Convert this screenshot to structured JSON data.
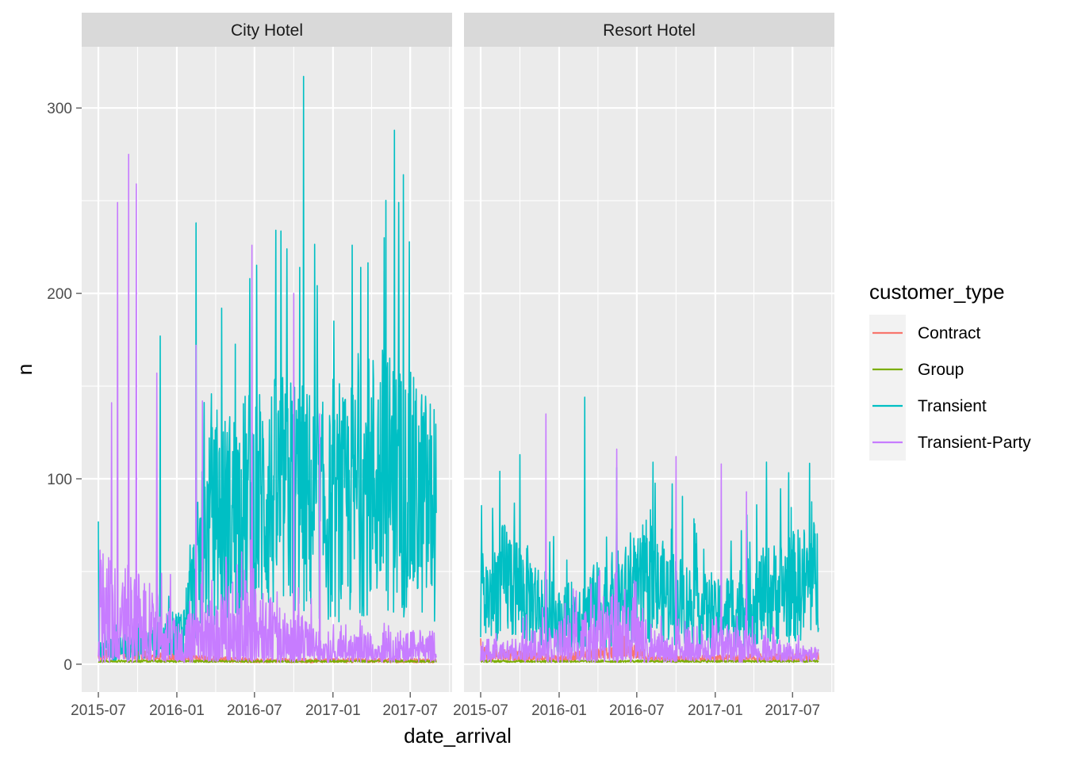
{
  "chart_data": {
    "type": "line",
    "facet_by": "hotel",
    "facets": [
      {
        "label": "City Hotel",
        "x_range": [
          "2015-07-01",
          "2017-08-31"
        ]
      },
      {
        "label": "Resort Hotel",
        "x_range": [
          "2015-07-01",
          "2017-08-31"
        ]
      }
    ],
    "xlabel": "date_arrival",
    "ylabel": "n",
    "x_ticks": [
      "2015-07",
      "2016-01",
      "2016-07",
      "2017-01",
      "2017-07"
    ],
    "y_ticks": [
      0,
      100,
      200,
      300
    ],
    "ylim": [
      -15,
      333
    ],
    "legend": {
      "title": "customer_type",
      "placement": "right",
      "entries": [
        "Contract",
        "Group",
        "Transient",
        "Transient-Party"
      ]
    },
    "colors": {
      "Contract": "#F8766D",
      "Group": "#7CAE00",
      "Transient": "#00BFC4",
      "Transient-Party": "#C77CFF",
      "panel_bg": "#EBEBEB",
      "strip_bg": "#D9D9D9",
      "grid": "#FFFFFF"
    },
    "series_profiles": {
      "City Hotel": {
        "Transient": {
          "baseline": [
            [
              "2015-07-01",
              8
            ],
            [
              "2015-10-01",
              10
            ],
            [
              "2016-01-15",
              20
            ],
            [
              "2016-03-15",
              80
            ],
            [
              "2016-07-01",
              95
            ],
            [
              "2016-10-01",
              100
            ],
            [
              "2017-01-01",
              85
            ],
            [
              "2017-04-15",
              110
            ],
            [
              "2017-08-31",
              90
            ]
          ],
          "peaks": [
            [
              "2015-07-01",
              77
            ],
            [
              "2015-11-23",
              177
            ],
            [
              "2016-02-15",
              238
            ],
            [
              "2016-04-15",
              192
            ],
            [
              "2016-06-20",
              208
            ],
            [
              "2016-09-15",
              224
            ],
            [
              "2016-10-15",
              214
            ],
            [
              "2016-10-24",
              317
            ],
            [
              "2017-02-15",
              226
            ],
            [
              "2017-05-01",
              230
            ],
            [
              "2017-05-25",
              288
            ],
            [
              "2017-06-15",
              264
            ]
          ]
        },
        "Transient-Party": {
          "baseline": [
            [
              "2015-07-01",
              40
            ],
            [
              "2015-10-15",
              30
            ],
            [
              "2016-01-15",
              15
            ],
            [
              "2016-06-01",
              30
            ],
            [
              "2016-09-01",
              20
            ],
            [
              "2017-01-01",
              10
            ],
            [
              "2017-08-31",
              12
            ]
          ],
          "peaks": [
            [
              "2015-08-01",
              141
            ],
            [
              "2015-08-15",
              249
            ],
            [
              "2015-09-10",
              275
            ],
            [
              "2015-09-28",
              259
            ],
            [
              "2015-11-15",
              157
            ],
            [
              "2016-02-15",
              172
            ],
            [
              "2016-03-01",
              142
            ],
            [
              "2016-06-25",
              226
            ],
            [
              "2016-10-01",
              200
            ],
            [
              "2016-12-01",
              135
            ]
          ]
        },
        "Contract": {
          "baseline": [
            [
              "2015-07-01",
              4
            ],
            [
              "2015-09-01",
              8
            ],
            [
              "2015-11-01",
              4
            ],
            [
              "2016-07-01",
              2
            ],
            [
              "2017-08-31",
              2
            ]
          ],
          "peaks": [
            [
              "2015-09-01",
              15
            ],
            [
              "2015-10-15",
              12
            ]
          ]
        },
        "Group": {
          "baseline": [
            [
              "2015-07-01",
              1
            ],
            [
              "2017-08-31",
              1
            ]
          ],
          "peaks": [
            [
              "2015-10-01",
              7
            ],
            [
              "2016-04-01",
              4
            ]
          ]
        }
      },
      "Resort Hotel": {
        "Transient": {
          "baseline": [
            [
              "2015-07-01",
              35
            ],
            [
              "2015-09-01",
              50
            ],
            [
              "2016-01-01",
              25
            ],
            [
              "2016-04-01",
              35
            ],
            [
              "2016-08-01",
              45
            ],
            [
              "2017-01-01",
              28
            ],
            [
              "2017-05-01",
              40
            ],
            [
              "2017-08-31",
              50
            ]
          ],
          "peaks": [
            [
              "2015-10-01",
              113
            ],
            [
              "2016-03-01",
              144
            ],
            [
              "2016-05-15",
              106
            ],
            [
              "2017-05-01",
              109
            ]
          ]
        },
        "Transient-Party": {
          "baseline": [
            [
              "2015-07-01",
              5
            ],
            [
              "2016-01-01",
              15
            ],
            [
              "2016-05-01",
              25
            ],
            [
              "2016-09-01",
              10
            ],
            [
              "2017-01-01",
              15
            ],
            [
              "2017-08-31",
              5
            ]
          ],
          "peaks": [
            [
              "2015-12-01",
              135
            ],
            [
              "2016-05-15",
              116
            ],
            [
              "2016-10-01",
              112
            ],
            [
              "2017-01-15",
              108
            ],
            [
              "2017-03-15",
              93
            ]
          ]
        },
        "Contract": {
          "baseline": [
            [
              "2015-07-01",
              6
            ],
            [
              "2016-01-01",
              3
            ],
            [
              "2016-06-01",
              8
            ],
            [
              "2016-09-01",
              3
            ],
            [
              "2017-08-31",
              4
            ]
          ],
          "peaks": [
            [
              "2015-07-01",
              14
            ],
            [
              "2016-06-01",
              15
            ]
          ]
        },
        "Group": {
          "baseline": [
            [
              "2015-07-01",
              1
            ],
            [
              "2017-08-31",
              1
            ]
          ],
          "peaks": [
            [
              "2016-10-01",
              5
            ]
          ]
        }
      }
    }
  }
}
